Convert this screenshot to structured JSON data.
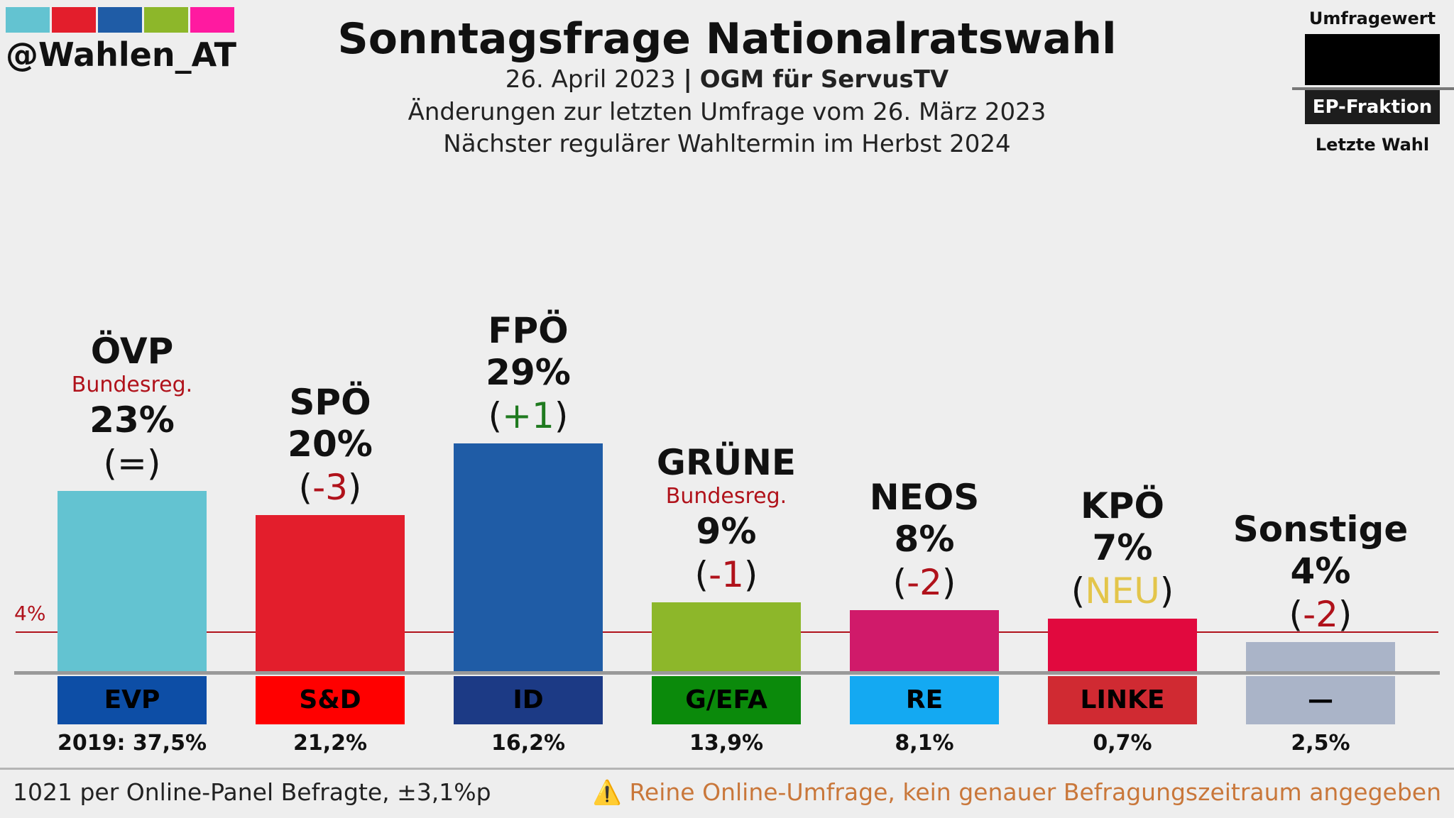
{
  "branding": {
    "handle": "@Wahlen_AT",
    "swatch_colors": [
      "#63c3d1",
      "#e31e2c",
      "#1f5ca6",
      "#8db72a",
      "#ff1aa0"
    ]
  },
  "header": {
    "title": "Sonntagsfrage Nationalratswahl",
    "date": "26. April 2023",
    "separator": "|",
    "institute": "OGM für ServusTV",
    "changes_note": "Änderungen zur letzten Umfrage vom 26. März 2023",
    "next_election": "Nächster regulärer Wahltermin im Herbst 2024"
  },
  "legend": {
    "top": "Umfragewert",
    "middle": "EP-Fraktion",
    "bottom": "Letzte Wahl"
  },
  "threshold": {
    "label": "4%",
    "value": 4
  },
  "colors": {
    "gov": "#b0121b",
    "up": "#1f7a1f",
    "down": "#b0121b",
    "new": "#e3c54a"
  },
  "chart_data": {
    "type": "bar",
    "title": "Sonntagsfrage Nationalratswahl",
    "xlabel": "",
    "ylabel": "",
    "ylim": [
      0,
      30
    ],
    "categories": [
      "ÖVP",
      "SPÖ",
      "FPÖ",
      "GRÜNE",
      "NEOS",
      "KPÖ",
      "Sonstige"
    ],
    "values": [
      23,
      20,
      29,
      9,
      8,
      7,
      4
    ],
    "parties": [
      {
        "name": "ÖVP",
        "value": 23,
        "value_label": "23%",
        "change": "=",
        "change_type": "neutral",
        "gov_label": "Bundesreg.",
        "color": "#63c3d1",
        "ep_group": "EVP",
        "ep_color": "#0d4ea6",
        "last_label": "2019: 37,5%"
      },
      {
        "name": "SPÖ",
        "value": 20,
        "value_label": "20%",
        "change": "-3",
        "change_type": "down",
        "gov_label": "",
        "color": "#e31e2c",
        "ep_group": "S&D",
        "ep_color": "#ff0000",
        "last_label": "21,2%"
      },
      {
        "name": "FPÖ",
        "value": 29,
        "value_label": "29%",
        "change": "+1",
        "change_type": "up",
        "gov_label": "",
        "color": "#1f5ca6",
        "ep_group": "ID",
        "ep_color": "#1c3a85",
        "last_label": "16,2%"
      },
      {
        "name": "GRÜNE",
        "value": 9,
        "value_label": "9%",
        "change": "-1",
        "change_type": "down",
        "gov_label": "Bundesreg.",
        "color": "#8db72a",
        "ep_group": "G/EFA",
        "ep_color": "#0b8a0b",
        "last_label": "13,9%"
      },
      {
        "name": "NEOS",
        "value": 8,
        "value_label": "8%",
        "change": "-2",
        "change_type": "down",
        "gov_label": "",
        "color": "#d01a6a",
        "ep_group": "RE",
        "ep_color": "#14a9f2",
        "last_label": "8,1%"
      },
      {
        "name": "KPÖ",
        "value": 7,
        "value_label": "7%",
        "change": "NEU",
        "change_type": "new",
        "gov_label": "",
        "color": "#e1093e",
        "ep_group": "LINKE",
        "ep_color": "#d02a32",
        "last_label": "0,7%"
      },
      {
        "name": "Sonstige",
        "value": 4,
        "value_label": "4%",
        "change": "-2",
        "change_type": "down",
        "gov_label": "",
        "color": "#aab4c8",
        "ep_group": "—",
        "ep_color": "#aab4c8",
        "last_label": "2,5%"
      }
    ]
  },
  "footer": {
    "sample": "1021 per Online-Panel Befragte, ±3,1%p",
    "warning_icon": "warning-icon",
    "warning": "Reine Online-Umfrage, kein genauer Befragungszeitraum angegeben"
  }
}
